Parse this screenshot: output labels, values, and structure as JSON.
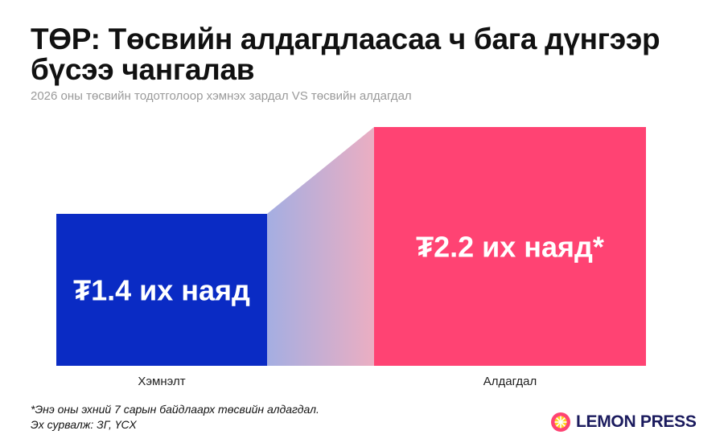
{
  "header": {
    "title": "ТӨР: Төсвийн алдагдлаасаа ч бага дүнгээр бүсээ чангалав",
    "subtitle": "2026 оны төсвийн тодотголоор хэмнэх зардал VS төсвийн алдагдал"
  },
  "chart_data": {
    "type": "bar",
    "categories": [
      "Хэмнэлт",
      "Алдагдал"
    ],
    "values": [
      1.4,
      2.2
    ],
    "data_labels": [
      "₮1.4 их наяд",
      "₮2.2 их наяд*"
    ],
    "unit": "их наяд ₮",
    "ylim": [
      0,
      2.2
    ],
    "grid": false,
    "legend": "none",
    "colors": [
      "#0a2bc4",
      "#ff4373"
    ]
  },
  "footer": {
    "note": "*Энэ оны эхний 7 сарын байдлаарх төсвийн алдагдал.",
    "source": "Эх сурвалж: ЗГ, ҮСХ"
  },
  "brand": {
    "name": "LEMON PRESS",
    "logo_colors": [
      "#ffd21f",
      "#ff4373"
    ]
  }
}
